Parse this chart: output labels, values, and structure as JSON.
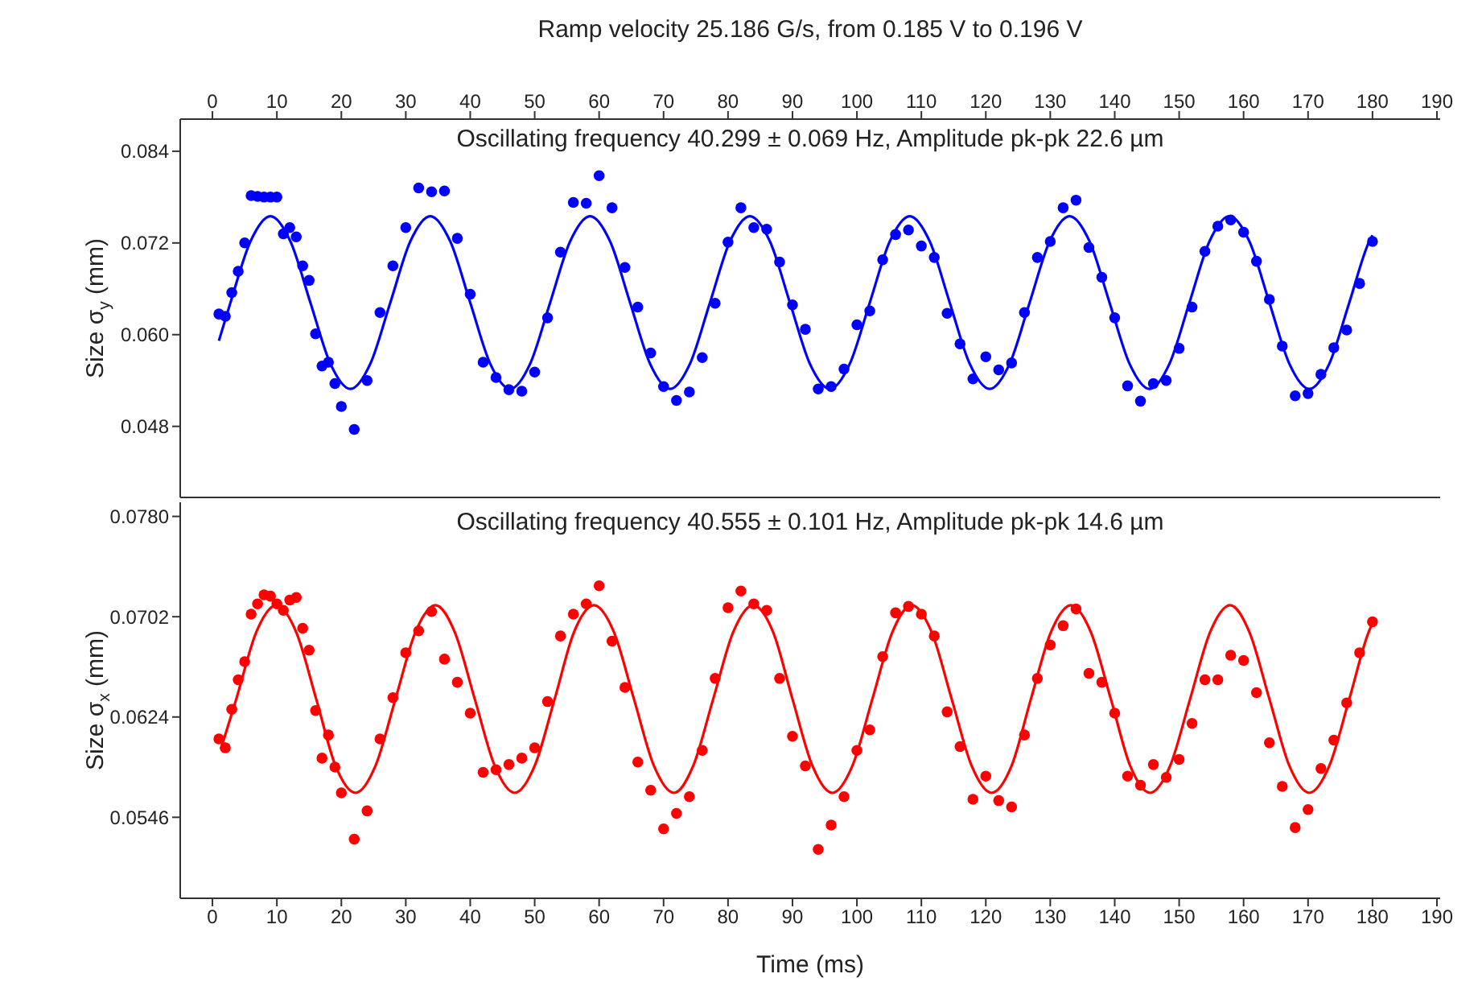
{
  "chart_data": [
    {
      "type": "scatter",
      "x2label": "Ramp velocity 25.186 G/s, from 0.185 V to 0.196 V",
      "ylabel": "Size σ$_{y}$ (mm)",
      "annotations": [
        "Oscillating frequency 40.299 ± 0.069 Hz, Amplitude pk-pk 22.6 µm"
      ],
      "xlim": [
        -5,
        190.5
      ],
      "xticks": [
        0,
        10,
        20,
        30,
        40,
        50,
        60,
        70,
        80,
        90,
        100,
        110,
        120,
        130,
        140,
        150,
        160,
        170,
        180,
        190
      ],
      "x2lim": [
        -5,
        190.5
      ],
      "x2ticks": [
        0,
        10,
        20,
        30,
        40,
        50,
        60,
        70,
        80,
        90,
        100,
        110,
        120,
        130,
        140,
        150,
        160,
        170,
        180,
        190
      ],
      "ylim": [
        0.0387,
        0.0882
      ],
      "yticks": [
        0.048,
        {
          "value": 0.06,
          "label": "0.060"
        },
        0.072,
        0.084
      ],
      "tick_labels": "y",
      "series": [
        {
          "type": "scatter",
          "marker": "circle",
          "color": "#0000ff",
          "x": [
            1,
            2,
            3,
            4,
            5,
            6,
            7,
            8,
            9,
            10,
            11,
            12,
            13,
            14,
            15,
            16,
            17,
            18,
            19,
            20,
            22,
            24,
            26,
            28,
            30,
            32,
            34,
            36,
            38,
            40,
            42,
            44,
            46,
            48,
            50,
            52,
            54,
            56,
            58,
            60,
            62,
            64,
            66,
            68,
            70,
            72,
            74,
            76,
            78,
            80,
            82,
            84,
            86,
            88,
            90,
            92,
            94,
            96,
            98,
            100,
            102,
            104,
            106,
            108,
            110,
            112,
            114,
            116,
            118,
            120,
            122,
            124,
            126,
            128,
            130,
            132,
            134,
            136,
            138,
            140,
            142,
            144,
            146,
            148,
            150,
            152,
            154,
            156,
            158,
            160,
            162,
            164,
            166,
            168,
            170,
            172,
            174,
            176,
            178,
            180
          ],
          "values": [
            0.0627,
            0.0624,
            0.0655,
            0.0683,
            0.072,
            0.0782,
            0.0781,
            0.078,
            0.078,
            0.078,
            0.0732,
            0.074,
            0.0728,
            0.069,
            0.0671,
            0.0601,
            0.0559,
            0.0564,
            0.0536,
            0.0506,
            0.0476,
            0.054,
            0.0629,
            0.069,
            0.074,
            0.0792,
            0.0787,
            0.0788,
            0.0726,
            0.0653,
            0.0564,
            0.0544,
            0.0528,
            0.0526,
            0.0551,
            0.0622,
            0.0708,
            0.0773,
            0.0772,
            0.0808,
            0.0766,
            0.0688,
            0.0636,
            0.0576,
            0.0532,
            0.0514,
            0.0525,
            0.057,
            0.0641,
            0.0721,
            0.0766,
            0.074,
            0.0738,
            0.0695,
            0.0639,
            0.0607,
            0.0529,
            0.0532,
            0.0555,
            0.0613,
            0.0631,
            0.0698,
            0.0731,
            0.0737,
            0.0716,
            0.0701,
            0.0628,
            0.0588,
            0.0542,
            0.0571,
            0.0554,
            0.0563,
            0.0629,
            0.0701,
            0.0722,
            0.0766,
            0.0776,
            0.0714,
            0.0675,
            0.0622,
            0.0533,
            0.0513,
            0.0536,
            0.054,
            0.0582,
            0.0636,
            0.0709,
            0.0742,
            0.075,
            0.0734,
            0.0696,
            0.0646,
            0.0585,
            0.052,
            0.0523,
            0.0548,
            0.0583,
            0.0606,
            0.0667,
            0.0722
          ]
        },
        {
          "type": "line",
          "marker": "none",
          "line_style": "solid",
          "color": "#0000ff",
          "x": [
            1,
            2.8,
            5.9,
            9.0,
            12.1,
            15.2,
            18.3,
            21.4,
            24.5,
            27.6,
            30.7,
            33.8,
            36.9,
            40.0,
            43.1,
            46.2,
            49.3,
            52.4,
            55.5,
            58.6,
            61.7,
            64.8,
            67.9,
            71.0,
            74.1,
            77.2,
            80.3,
            83.4,
            86.5,
            89.6,
            92.7,
            95.8,
            98.9,
            102.0,
            105.1,
            108.2,
            111.3,
            114.4,
            117.5,
            120.6,
            123.7,
            126.8,
            129.9,
            133.0,
            136.1,
            139.2,
            142.3,
            145.4,
            148.5,
            151.6,
            154.7,
            157.8,
            160.9,
            164.0,
            167.1,
            170.2,
            173.3,
            176.4,
            179.5,
            180
          ],
          "values": [
            0.0592,
            0.0642,
            0.0722,
            0.0755,
            0.0722,
            0.0642,
            0.0562,
            0.0529,
            0.0562,
            0.0642,
            0.0722,
            0.0755,
            0.0722,
            0.0642,
            0.0562,
            0.0529,
            0.0562,
            0.0642,
            0.0722,
            0.0755,
            0.0722,
            0.0642,
            0.0562,
            0.0529,
            0.0562,
            0.0642,
            0.0722,
            0.0755,
            0.0722,
            0.0642,
            0.0562,
            0.0529,
            0.0562,
            0.0642,
            0.0722,
            0.0755,
            0.0722,
            0.0642,
            0.0562,
            0.0529,
            0.0562,
            0.0642,
            0.0722,
            0.0755,
            0.0722,
            0.0642,
            0.0562,
            0.0529,
            0.0562,
            0.0642,
            0.0722,
            0.0755,
            0.0722,
            0.0642,
            0.0562,
            0.0529,
            0.0562,
            0.0642,
            0.0722,
            0.073
          ]
        }
      ]
    },
    {
      "type": "scatter",
      "xlabel": "Time (ms)",
      "ylabel": "Size σ$_{x}$ (mm)",
      "annotations": [
        "Oscillating frequency 40.555 ± 0.101 Hz, Amplitude pk-pk 14.6 µm"
      ],
      "xlim": [
        -5,
        190.5
      ],
      "xticks": [
        0,
        10,
        20,
        30,
        40,
        50,
        60,
        70,
        80,
        90,
        100,
        110,
        120,
        130,
        140,
        150,
        160,
        170,
        180,
        190
      ],
      "ylim": [
        0.0483,
        0.0791
      ],
      "yticks": [
        0.0546,
        0.0624,
        0.0702,
        {
          "value": 0.078,
          "label": "0.0780"
        }
      ],
      "series": [
        {
          "type": "scatter",
          "marker": "circle",
          "color": "#ff0000",
          "x": [
            1,
            2,
            3,
            4,
            5,
            6,
            7,
            8,
            9,
            10,
            11,
            12,
            13,
            14,
            15,
            16,
            17,
            18,
            19,
            20,
            22,
            24,
            26,
            28,
            30,
            32,
            34,
            36,
            38,
            40,
            42,
            44,
            46,
            48,
            50,
            52,
            54,
            56,
            58,
            60,
            62,
            64,
            66,
            68,
            70,
            72,
            74,
            76,
            78,
            80,
            82,
            84,
            86,
            88,
            90,
            92,
            94,
            96,
            98,
            100,
            102,
            104,
            106,
            108,
            110,
            112,
            114,
            116,
            118,
            120,
            122,
            124,
            126,
            128,
            130,
            132,
            134,
            136,
            138,
            140,
            142,
            144,
            146,
            148,
            150,
            152,
            154,
            156,
            158,
            160,
            162,
            164,
            166,
            168,
            170,
            172,
            174,
            176,
            178,
            180
          ],
          "values": [
            0.0607,
            0.06,
            0.063,
            0.0653,
            0.0667,
            0.0704,
            0.0712,
            0.0719,
            0.0718,
            0.0712,
            0.0707,
            0.0715,
            0.0717,
            0.0693,
            0.0676,
            0.0629,
            0.0592,
            0.061,
            0.0585,
            0.0565,
            0.0529,
            0.0551,
            0.0607,
            0.0639,
            0.0674,
            0.0691,
            0.0706,
            0.0669,
            0.0651,
            0.0627,
            0.0581,
            0.0583,
            0.0587,
            0.0592,
            0.06,
            0.0636,
            0.0687,
            0.0704,
            0.0712,
            0.0726,
            0.0683,
            0.0647,
            0.0589,
            0.0567,
            0.0537,
            0.0549,
            0.0562,
            0.0598,
            0.0654,
            0.0709,
            0.0722,
            0.0712,
            0.0707,
            0.0654,
            0.0609,
            0.0586,
            0.0521,
            0.054,
            0.0562,
            0.0598,
            0.0614,
            0.0671,
            0.0705,
            0.071,
            0.0704,
            0.0687,
            0.0628,
            0.0601,
            0.056,
            0.0578,
            0.0559,
            0.0554,
            0.061,
            0.0654,
            0.068,
            0.0695,
            0.0708,
            0.0658,
            0.0651,
            0.0627,
            0.0578,
            0.0571,
            0.0587,
            0.0577,
            0.0591,
            0.0619,
            0.0653,
            0.0653,
            0.0672,
            0.0668,
            0.0643,
            0.0604,
            0.057,
            0.0538,
            0.0552,
            0.0584,
            0.0606,
            0.0635,
            0.0674,
            0.0698
          ]
        },
        {
          "type": "line",
          "marker": "none",
          "line_style": "solid",
          "color": "#ff0000",
          "x": [
            1.3,
            3.7,
            6.8,
            9.9,
            13.0,
            16.1,
            19.1,
            22.2,
            25.3,
            28.4,
            31.5,
            34.6,
            37.6,
            40.7,
            43.8,
            46.9,
            50.0,
            53.1,
            56.1,
            59.2,
            62.3,
            65.4,
            68.5,
            71.6,
            74.6,
            77.7,
            80.8,
            83.9,
            87.0,
            90.0,
            93.1,
            96.2,
            99.3,
            102.4,
            105.5,
            108.5,
            111.6,
            114.7,
            117.8,
            120.9,
            124.0,
            127.0,
            130.1,
            133.2,
            136.3,
            139.4,
            142.4,
            145.5,
            148.6,
            151.7,
            154.8,
            157.9,
            160.9,
            164.0,
            167.1,
            170.2,
            173.3,
            176.4,
            179.4,
            180
          ],
          "values": [
            0.0599,
            0.0638,
            0.069,
            0.0711,
            0.069,
            0.0638,
            0.0586,
            0.0565,
            0.0586,
            0.0638,
            0.069,
            0.0711,
            0.069,
            0.0638,
            0.0586,
            0.0565,
            0.0586,
            0.0638,
            0.069,
            0.0711,
            0.069,
            0.0638,
            0.0586,
            0.0565,
            0.0586,
            0.0638,
            0.069,
            0.0711,
            0.069,
            0.0638,
            0.0586,
            0.0565,
            0.0586,
            0.0638,
            0.069,
            0.0711,
            0.069,
            0.0638,
            0.0586,
            0.0565,
            0.0586,
            0.0638,
            0.069,
            0.0711,
            0.069,
            0.0638,
            0.0586,
            0.0565,
            0.0586,
            0.0638,
            0.069,
            0.0711,
            0.069,
            0.0638,
            0.0586,
            0.0565,
            0.0586,
            0.0638,
            0.069,
            0.0697
          ]
        }
      ]
    }
  ]
}
